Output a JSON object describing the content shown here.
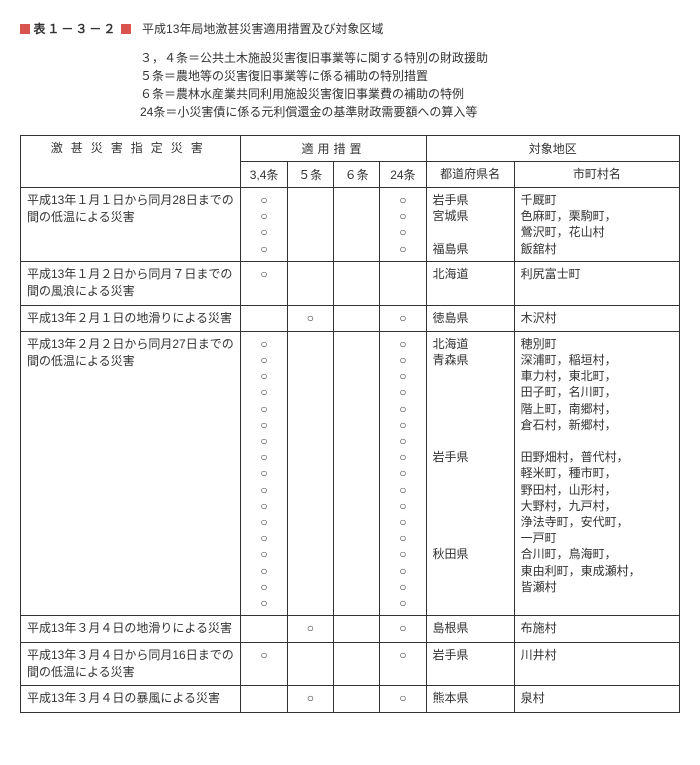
{
  "title_label": "表１－３－２",
  "subtitle": "平成13年局地激甚災害適用措置及び対象区域",
  "legend": [
    "３，４条＝公共土木施設災害復旧事業等に関する特別の財政援助",
    "５条＝農地等の災害復旧事業等に係る補助の特別措置",
    "６条＝農林水産業共同利用施設災害復旧事業費の補助の特例",
    "24条＝小災害債に係る元利償還金の基準財政需要額への算入等"
  ],
  "headers": {
    "disaster": "激甚災害指定災害",
    "measures": "適用措置",
    "area": "対象地区",
    "c34": "3,4条",
    "c5": "５条",
    "c6": "６条",
    "c24": "24条",
    "pref": "都道府県名",
    "town": "市町村名"
  },
  "circle": "○",
  "rows": [
    {
      "disaster": "平成13年１月１日から同月28日までの間の低温による災害",
      "c34_count": 4,
      "c5_count": 0,
      "c6_count": 0,
      "c24_count": 4,
      "prefs": [
        "岩手県",
        "宮城県",
        "",
        "福島県"
      ],
      "towns": [
        "千厩町",
        "色麻町，栗駒町，",
        "鶯沢町，花山村",
        "飯舘村"
      ]
    },
    {
      "disaster": "平成13年１月２日から同月７日までの間の風浪による災害",
      "c34_count": 1,
      "c5_count": 0,
      "c6_count": 0,
      "c24_count": 0,
      "prefs": [
        "北海道"
      ],
      "towns": [
        "利尻富士町"
      ]
    },
    {
      "disaster": "平成13年２月１日の地滑りによる災害",
      "c34_count": 0,
      "c5_count": 1,
      "c6_count": 0,
      "c24_count": 1,
      "prefs": [
        "徳島県"
      ],
      "towns": [
        "木沢村"
      ]
    },
    {
      "disaster": "平成13年２月２日から同月27日までの間の低温による災害",
      "c34_count": 17,
      "c5_count": 0,
      "c6_count": 0,
      "c24_count": 17,
      "prefs": [
        "北海道",
        "青森県",
        "",
        "",
        "",
        "",
        "",
        "岩手県",
        "",
        "",
        "",
        "",
        "",
        "秋田県",
        "",
        "",
        ""
      ],
      "towns": [
        "穂別町",
        "深浦町，稲垣村，",
        "車力村，東北町，",
        "田子町，名川町，",
        "階上町，南郷村，",
        "倉石村，新郷村，",
        "",
        "田野畑村，普代村，",
        "軽米町，種市町，",
        "野田村，山形村，",
        "大野村，九戸村，",
        "浄法寺町，安代町，",
        "一戸町",
        "合川町，鳥海町，",
        "東由利町，東成瀬村，",
        "皆瀬村",
        ""
      ]
    },
    {
      "disaster": "平成13年３月４日の地滑りによる災害",
      "c34_count": 0,
      "c5_count": 1,
      "c6_count": 0,
      "c24_count": 1,
      "prefs": [
        "島根県"
      ],
      "towns": [
        "布施村"
      ]
    },
    {
      "disaster": "平成13年３月４日から同月16日までの間の低温による災害",
      "c34_count": 1,
      "c5_count": 0,
      "c6_count": 0,
      "c24_count": 1,
      "prefs": [
        "岩手県"
      ],
      "towns": [
        "川井村"
      ]
    },
    {
      "disaster": "平成13年３月４日の暴風による災害",
      "c34_count": 0,
      "c5_count": 1,
      "c6_count": 0,
      "c24_count": 1,
      "prefs": [
        "熊本県"
      ],
      "towns": [
        "泉村"
      ]
    }
  ]
}
